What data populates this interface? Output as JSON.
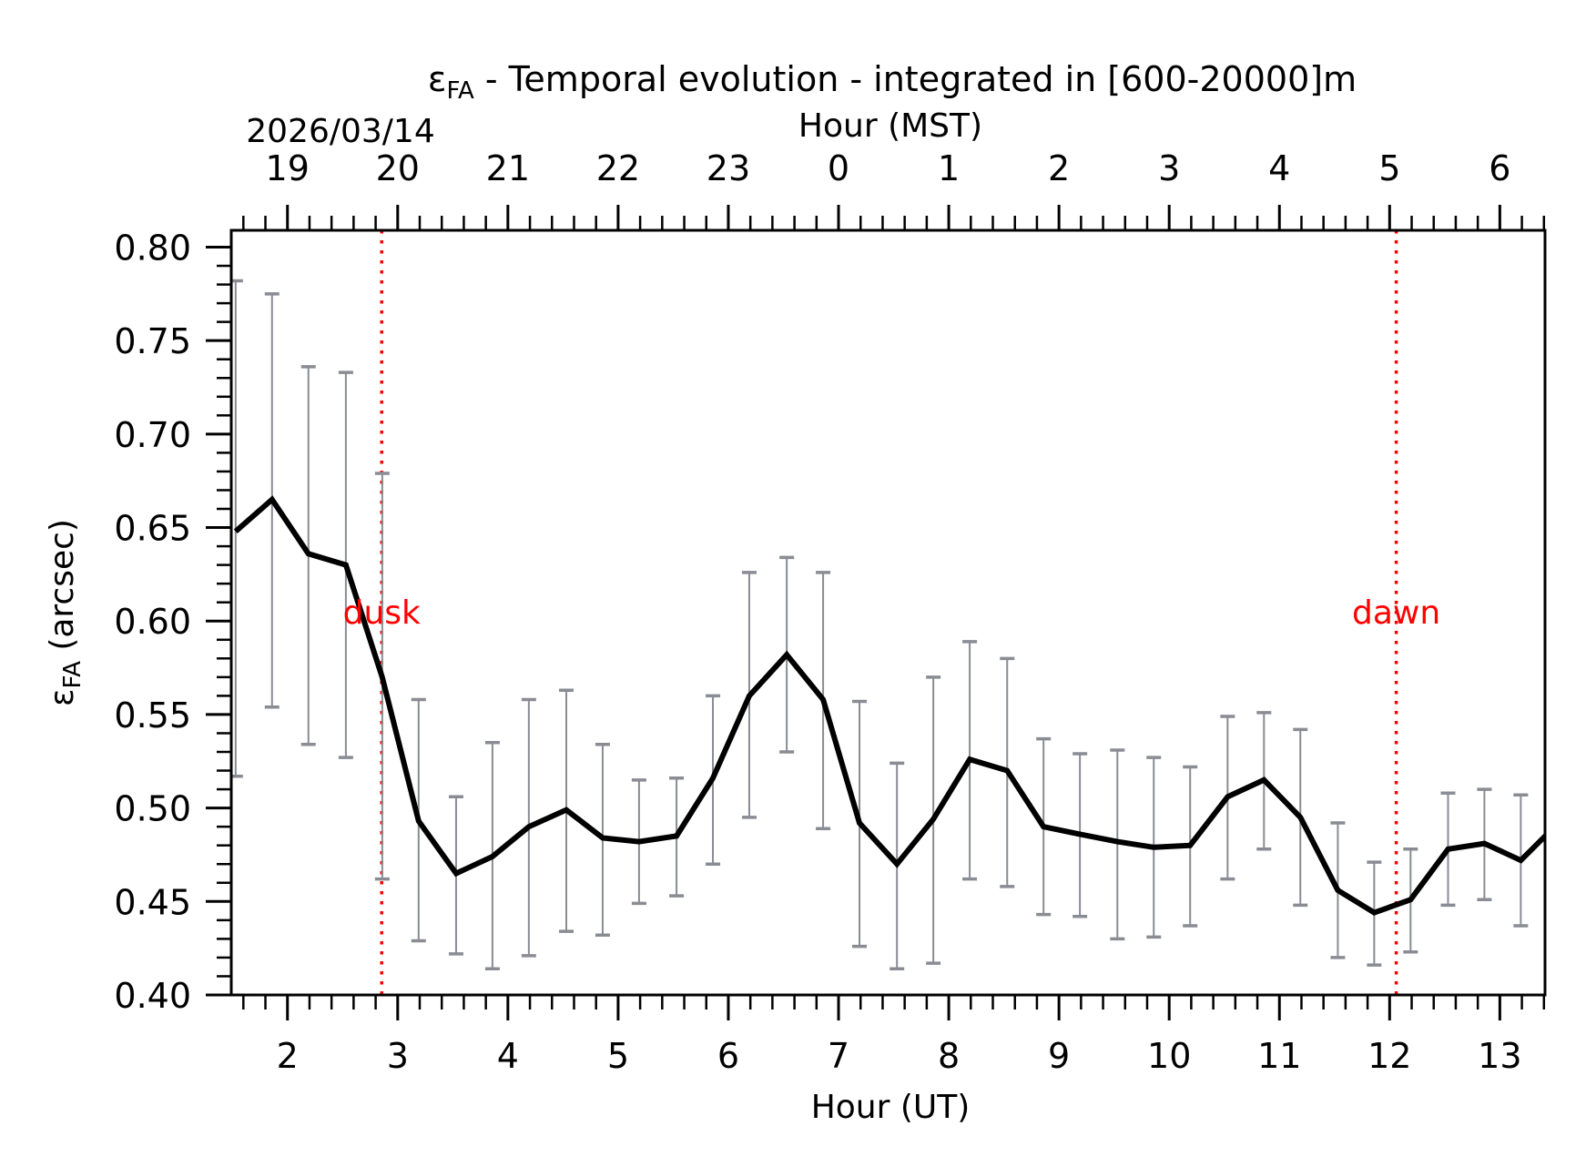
{
  "chart_data": {
    "type": "line",
    "title": "εFA - Temporal evolution - integrated in [600-20000]m",
    "title_symbol": "ε",
    "title_symbol_sub": "FA",
    "title_rest": " - Temporal evolution - integrated in [600-20000]m",
    "xlabel": "Hour (UT)",
    "ylabel": "εFA (arcsec)",
    "ylabel_symbol": "ε",
    "ylabel_symbol_sub": "FA",
    "ylabel_rest": " (arcsec)",
    "top_xlabel": "Hour (MST)",
    "date_label": "2026/03/14",
    "xlim": [
      1.49,
      13.41
    ],
    "ylim": [
      0.4,
      0.809
    ],
    "x_ticks": [
      2,
      3,
      4,
      5,
      6,
      7,
      8,
      9,
      10,
      11,
      12,
      13
    ],
    "x_tick_labels": [
      "2",
      "3",
      "4",
      "5",
      "6",
      "7",
      "8",
      "9",
      "10",
      "11",
      "12",
      "13"
    ],
    "x_minor_step": 0.2,
    "top_ticks_ut": [
      2,
      3,
      4,
      5,
      6,
      7,
      8,
      9,
      10,
      11,
      12,
      13
    ],
    "top_tick_labels": [
      "19",
      "20",
      "21",
      "22",
      "23",
      "0",
      "1",
      "2",
      "3",
      "4",
      "5",
      "6"
    ],
    "y_ticks": [
      0.4,
      0.45,
      0.5,
      0.55,
      0.6,
      0.65,
      0.7,
      0.75,
      0.8
    ],
    "y_tick_labels": [
      "0.40",
      "0.45",
      "0.50",
      "0.55",
      "0.60",
      "0.65",
      "0.70",
      "0.75",
      "0.80"
    ],
    "y_minor_step": 0.01,
    "grid": false,
    "series": [
      {
        "name": "εFA",
        "color": "#000000",
        "x": [
          1.53,
          1.86,
          2.19,
          2.53,
          2.86,
          3.19,
          3.53,
          3.86,
          4.19,
          4.53,
          4.86,
          5.19,
          5.53,
          5.86,
          6.19,
          6.53,
          6.86,
          7.19,
          7.53,
          7.86,
          8.19,
          8.53,
          8.86,
          9.19,
          9.53,
          9.86,
          10.19,
          10.53,
          10.86,
          11.19,
          11.53,
          11.86,
          12.19,
          12.53,
          12.86,
          13.19,
          13.53
        ],
        "y": [
          0.648,
          0.665,
          0.636,
          0.63,
          0.57,
          0.493,
          0.465,
          0.474,
          0.49,
          0.499,
          0.484,
          0.482,
          0.485,
          0.516,
          0.56,
          0.582,
          0.558,
          0.492,
          0.47,
          0.494,
          0.526,
          0.52,
          0.49,
          0.486,
          0.482,
          0.479,
          0.48,
          0.506,
          0.515,
          0.495,
          0.456,
          0.444,
          0.451,
          0.478,
          0.481,
          0.472,
          0.492
        ],
        "y_upper": [
          0.782,
          0.775,
          0.736,
          0.733,
          0.679,
          0.558,
          0.506,
          0.535,
          0.558,
          0.563,
          0.534,
          0.515,
          0.516,
          0.56,
          0.626,
          0.634,
          0.626,
          0.557,
          0.524,
          0.57,
          0.589,
          0.58,
          0.537,
          0.529,
          0.531,
          0.527,
          0.522,
          0.549,
          0.551,
          0.542,
          0.492,
          0.471,
          0.478,
          0.508,
          0.51,
          0.507,
          0.52
        ],
        "y_lower": [
          0.517,
          0.554,
          0.534,
          0.527,
          0.462,
          0.429,
          0.422,
          0.414,
          0.421,
          0.434,
          0.432,
          0.449,
          0.453,
          0.47,
          0.495,
          0.53,
          0.489,
          0.426,
          0.414,
          0.417,
          0.462,
          0.458,
          0.443,
          0.442,
          0.43,
          0.431,
          0.437,
          0.462,
          0.478,
          0.448,
          0.42,
          0.416,
          0.423,
          0.448,
          0.451,
          0.437,
          0.46
        ],
        "errorbar_color": "#8a8c94"
      }
    ],
    "annotations": [
      {
        "label": "dusk",
        "x": 2.855,
        "y_text": 0.605,
        "color": "#ff0000",
        "style": "dotted-vertical"
      },
      {
        "label": "dawn",
        "x": 12.06,
        "y_text": 0.605,
        "color": "#ff0000",
        "style": "dotted-vertical"
      }
    ]
  }
}
